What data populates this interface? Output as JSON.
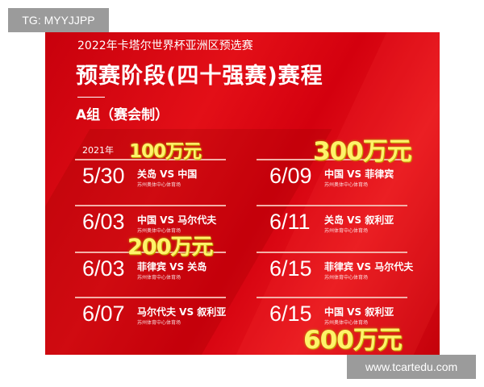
{
  "overlay_tag": "TG: MYYJJPP",
  "watermark": "www.tcartedu.com",
  "poster": {
    "subtitle": "2022年卡塔尔世界杯亚洲区预选赛",
    "title": "预赛阶段(四十强赛)赛程",
    "group": "A组（赛会制）",
    "year": "2021年",
    "matches": [
      {
        "date": "5/30",
        "teams": "关岛  VS  中国",
        "venue": "苏州奥体中心体育场"
      },
      {
        "date": "6/03",
        "teams": "中国  VS  马尔代夫",
        "venue": "苏州奥体中心体育场"
      },
      {
        "date": "6/03",
        "teams": "菲律宾  VS  关岛",
        "venue": "苏州体育中心体育场"
      },
      {
        "date": "6/07",
        "teams": "马尔代夫  VS  叙利亚",
        "venue": "苏州体育中心体育场"
      },
      {
        "date": "6/09",
        "teams": "中国  VS  菲律宾",
        "venue": "苏州奥体中心体育场"
      },
      {
        "date": "6/11",
        "teams": "关岛  VS  叙利亚",
        "venue": "苏州体育中心体育场"
      },
      {
        "date": "6/15",
        "teams": "菲律宾  VS  马尔代夫",
        "venue": "苏州体育中心体育场"
      },
      {
        "date": "6/15",
        "teams": "中国  VS  叙利亚",
        "venue": "苏州奥体中心体育场"
      }
    ],
    "bonuses": [
      "100万元",
      "300万元",
      "200万元",
      "600万元"
    ],
    "colors": {
      "background": "#e30f17",
      "bonus": "#fff36a"
    }
  }
}
